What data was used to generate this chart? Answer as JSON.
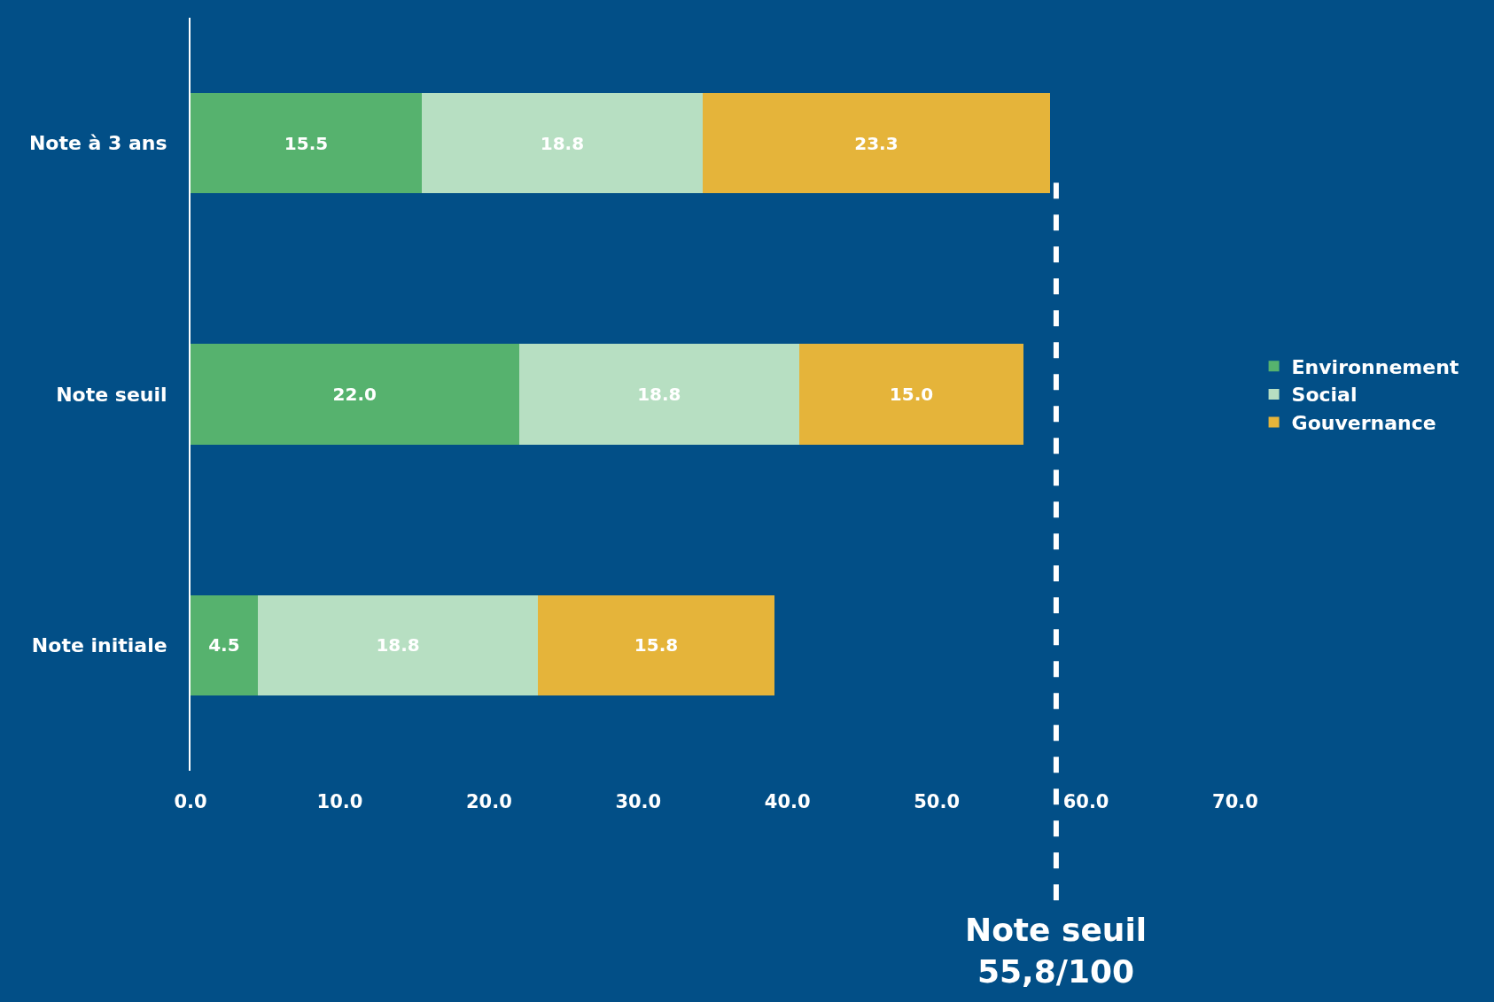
{
  "chart_data": {
    "type": "bar",
    "orientation": "horizontal",
    "stacked": true,
    "categories": [
      "Note à 3 ans",
      "Note seuil",
      "Note initiale"
    ],
    "series": [
      {
        "name": "Environnement",
        "color": "#56b26e",
        "values": [
          15.5,
          22.0,
          4.5
        ],
        "value_labels": [
          "15.5",
          "22.0",
          "4.5"
        ]
      },
      {
        "name": "Social",
        "color": "#b7dfc2",
        "values": [
          18.8,
          18.8,
          18.8
        ],
        "value_labels": [
          "18.8",
          "18.8",
          "18.8"
        ]
      },
      {
        "name": "Gouvernance",
        "color": "#e5b43a",
        "values": [
          23.3,
          15.0,
          15.8
        ],
        "value_labels": [
          "23.3",
          "15.0",
          "15.8"
        ]
      }
    ],
    "xlim": [
      0,
      70
    ],
    "xticks": [
      {
        "value": 0,
        "label": "0.0"
      },
      {
        "value": 10,
        "label": "10.0"
      },
      {
        "value": 20,
        "label": "20.0"
      },
      {
        "value": 30,
        "label": "30.0"
      },
      {
        "value": 40,
        "label": "40.0"
      },
      {
        "value": 50,
        "label": "50.0"
      },
      {
        "value": 60,
        "label": "60.0"
      },
      {
        "value": 70,
        "label": "70.0"
      }
    ],
    "grid": false,
    "legend": "right",
    "ref_lines": [
      {
        "axis": "x",
        "value": 58,
        "label": "Note seuil\n55,8/100",
        "color": "#ffffff",
        "line_style": "dashed"
      }
    ]
  }
}
